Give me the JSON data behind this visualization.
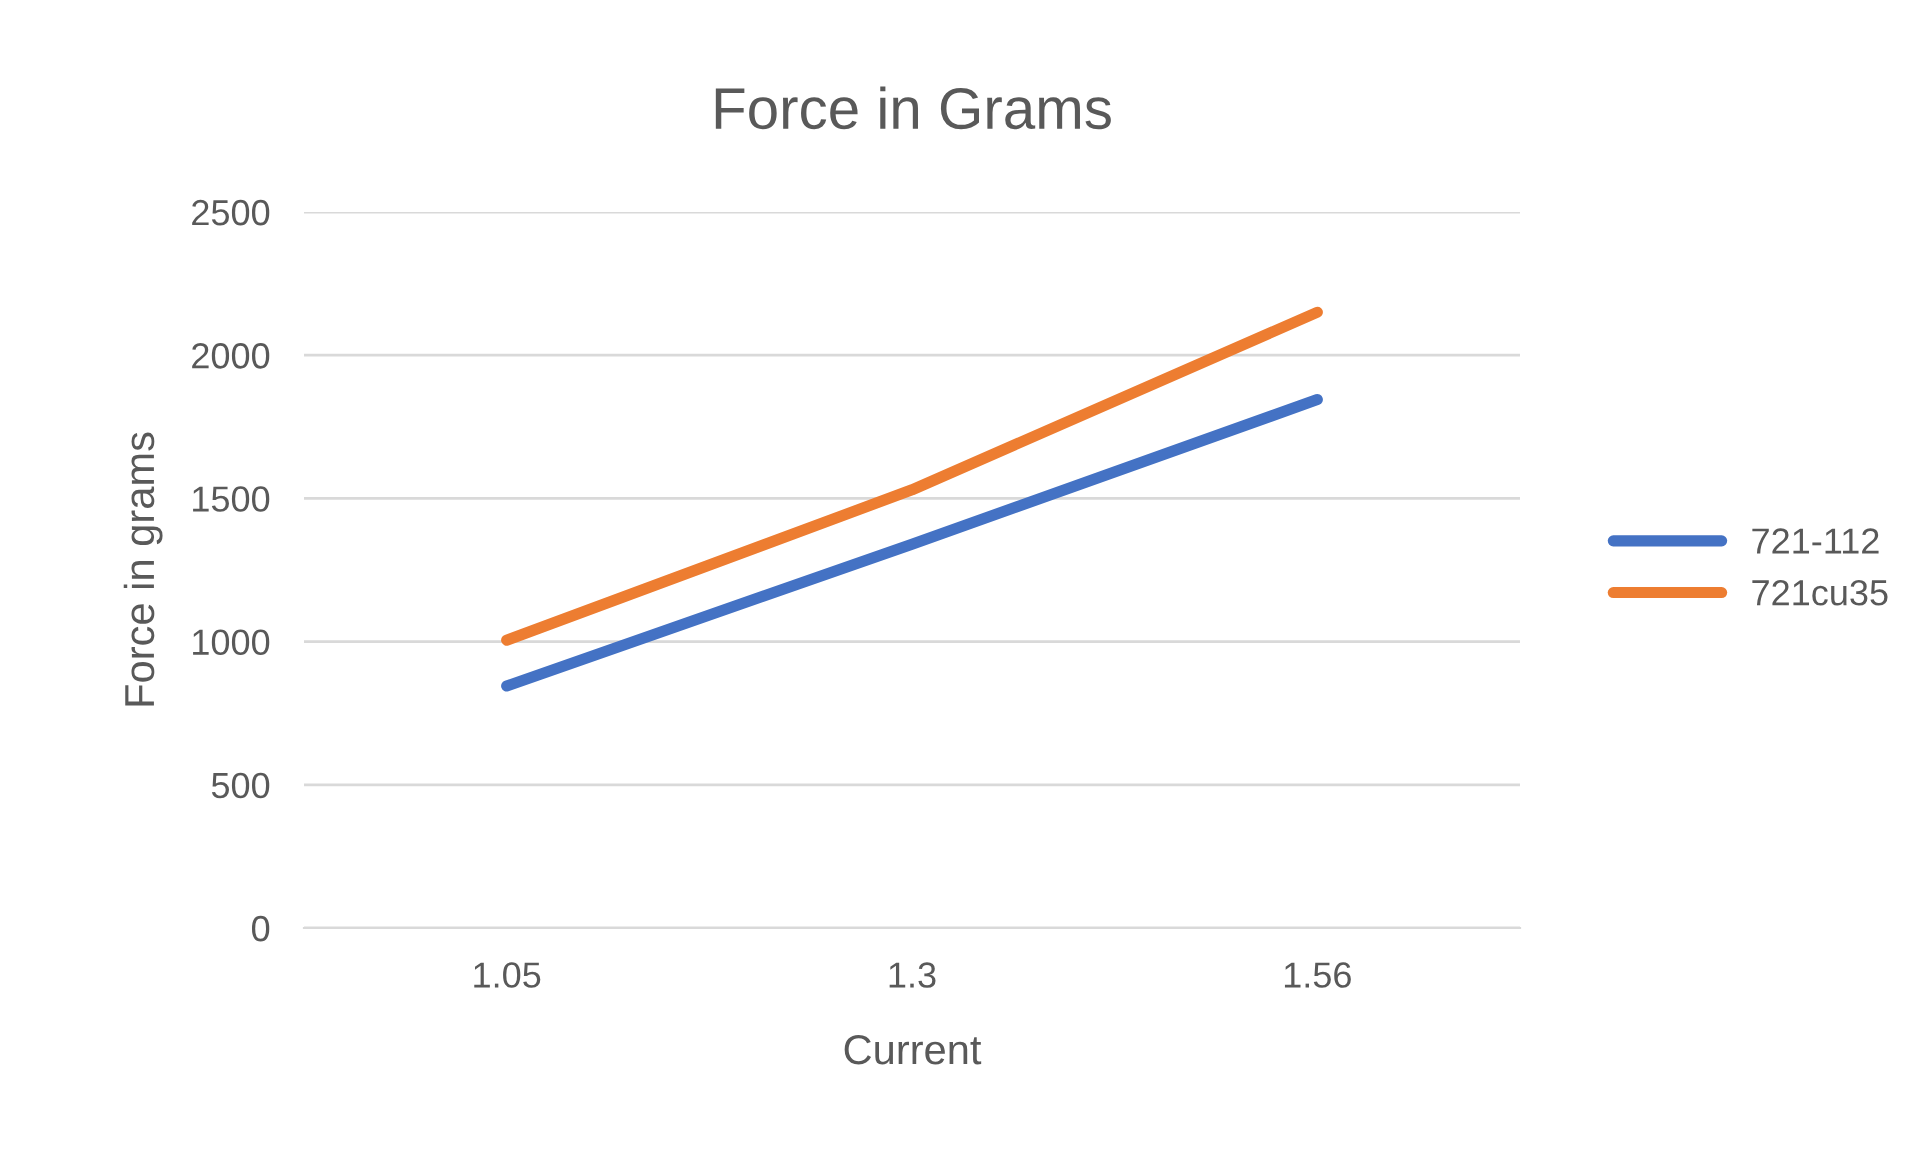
{
  "chart_data": {
    "type": "line",
    "title": "Force in Grams",
    "xlabel": "Current",
    "ylabel": "Force in grams",
    "categories": [
      "1.05",
      "1.3",
      "1.56"
    ],
    "series": [
      {
        "name": "721-112",
        "color": "#4472c4",
        "values": [
          845,
          1340,
          1845
        ]
      },
      {
        "name": "721cu35",
        "color": "#ed7d31",
        "values": [
          1005,
          1530,
          2150
        ]
      }
    ],
    "ylim": [
      0,
      2500
    ],
    "yticks": [
      0,
      500,
      1000,
      1500,
      2000,
      2500
    ],
    "grid": "y",
    "legend": "right",
    "marker": "none",
    "line_style": "solid"
  }
}
